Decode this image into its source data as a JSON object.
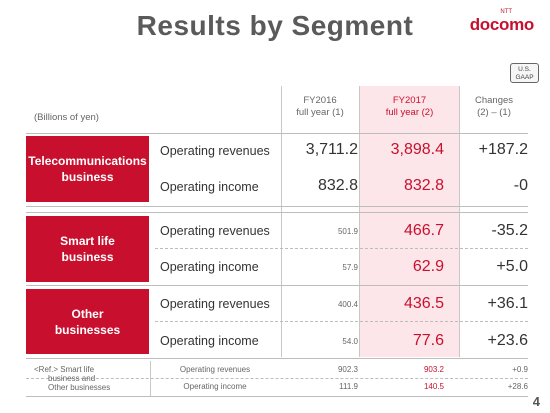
{
  "title": "Results by Segment",
  "logo": {
    "ntt": "NTT",
    "brand": "docomo"
  },
  "badge": {
    "line1": "U.S.",
    "line2": "GAAP"
  },
  "header": {
    "units": "(Billions of yen)",
    "col1_line1": "FY2016",
    "col1_line2": "full year (1)",
    "col2_line1": "FY2017",
    "col2_line2": "full year (2)",
    "col3_line1": "Changes",
    "col3_line2": "(2) – (1)"
  },
  "segments": [
    {
      "name": "Telecommunications business",
      "rows": [
        {
          "label": "Operating revenues",
          "fy2016": "3,711.2",
          "fy2017": "3,898.4",
          "change": "+187.2"
        },
        {
          "label": "Operating income",
          "fy2016": "832.8",
          "fy2017": "832.8",
          "change": "-0"
        }
      ]
    },
    {
      "name": "Smart life business",
      "rows": [
        {
          "label": "Operating revenues",
          "fy2016": "501.9",
          "fy2017": "466.7",
          "change": "-35.2"
        },
        {
          "label": "Operating income",
          "fy2016": "57.9",
          "fy2017": "62.9",
          "change": "+5.0"
        }
      ]
    },
    {
      "name": "Other businesses",
      "rows": [
        {
          "label": "Operating revenues",
          "fy2016": "400.4",
          "fy2017": "436.5",
          "change": "+36.1"
        },
        {
          "label": "Operating income",
          "fy2016": "54.0",
          "fy2017": "77.6",
          "change": "+23.6"
        }
      ]
    }
  ],
  "reference": {
    "label_line1": "<Ref.> Smart life",
    "label_line2": "business and",
    "label_line3": "Other businesses",
    "rows": [
      {
        "label": "Operating revenues",
        "fy2016": "902.3",
        "fy2017": "903.2",
        "change": "+0.9"
      },
      {
        "label": "Operating income",
        "fy2016": "111.9",
        "fy2017": "140.5",
        "change": "+28.6"
      }
    ]
  },
  "page_number": "4",
  "colors": {
    "brand_red": "#c8102e",
    "highlight": "#fde6e9",
    "title_gray": "#5a5a5a"
  }
}
